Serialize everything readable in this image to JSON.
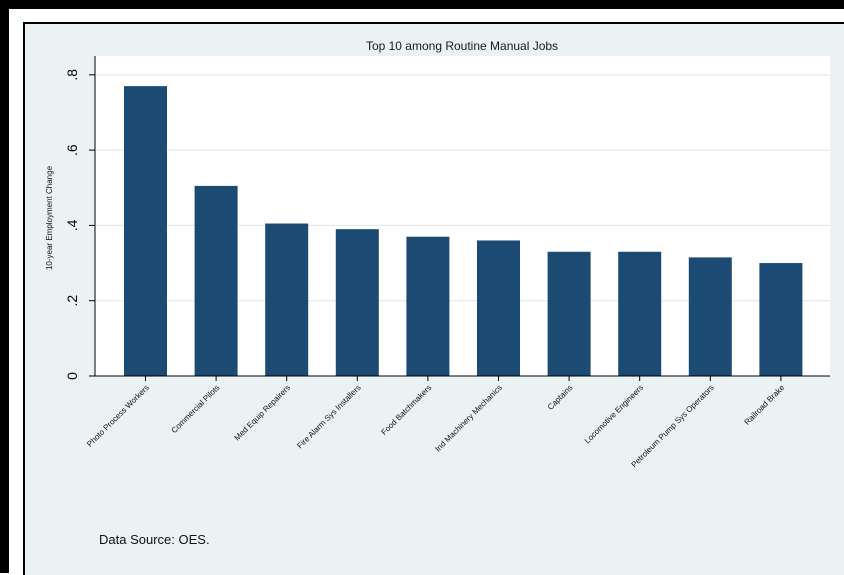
{
  "chart_data": {
    "type": "bar",
    "title": "Top 10 among Routine Manual Jobs",
    "ylabel": "10-year Employment Change",
    "xlabel": "",
    "ylim": [
      0,
      0.85
    ],
    "yticks": [
      {
        "value": 0,
        "label": "0"
      },
      {
        "value": 0.2,
        "label": ".2"
      },
      {
        "value": 0.4,
        "label": ".4"
      },
      {
        "value": 0.6,
        "label": ".6"
      },
      {
        "value": 0.8,
        "label": ".8"
      }
    ],
    "categories": [
      "Photo Process Workers",
      "Commercial Pilots",
      "Med Equip Repairers",
      "Fire Alarm Sys Installers",
      "Food Batchmakers",
      "Ind Machinery Mechanics",
      "Captains",
      "Locomotive Engineers",
      "Petroleum Pump Sys Operators",
      "Railroad Brake"
    ],
    "values": [
      0.77,
      0.505,
      0.405,
      0.39,
      0.37,
      0.36,
      0.33,
      0.33,
      0.315,
      0.3
    ],
    "grid": true,
    "colors": {
      "bar": "#1b4a72",
      "grid": "#dde6ea",
      "plot_bg": "#ffffff",
      "outer_bg": "#eaf2f3"
    }
  },
  "source_note": "Data Source: OES."
}
